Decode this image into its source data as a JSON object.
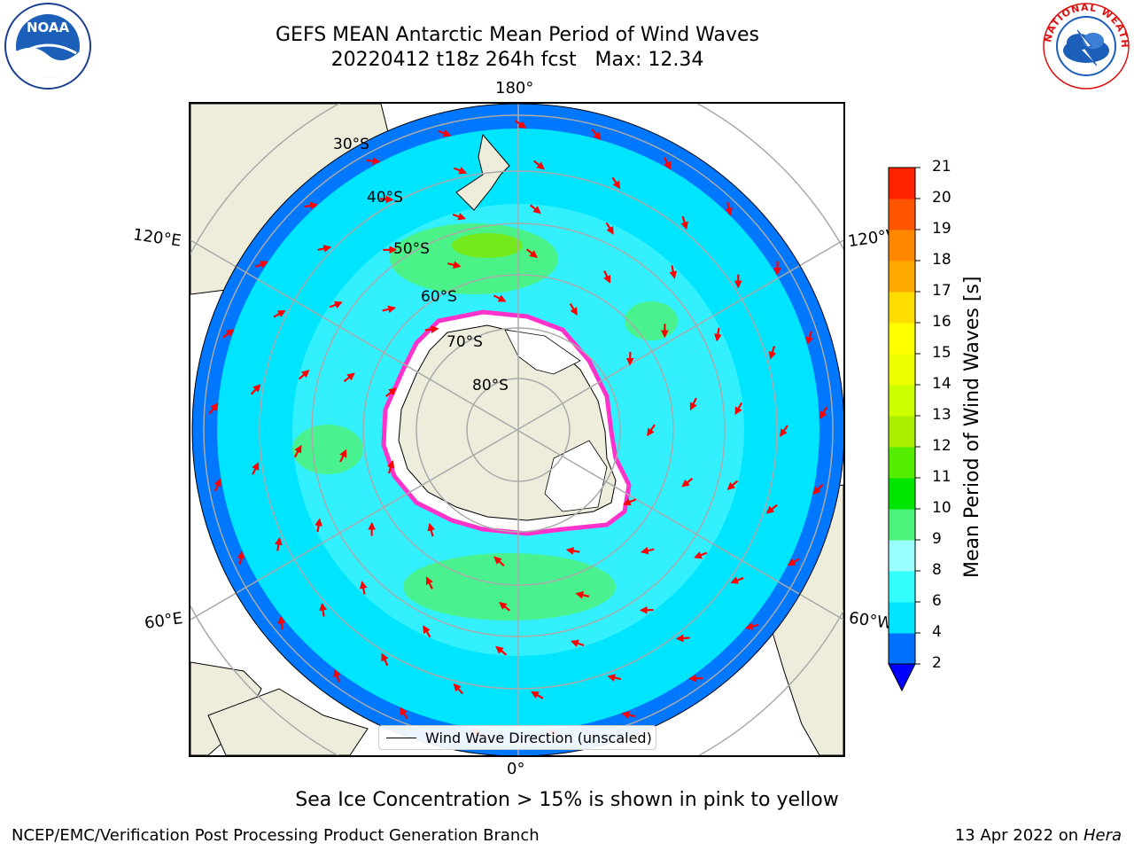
{
  "title": {
    "line1": "GEFS MEAN Antarctic Mean Period of Wind Waves",
    "line2": "20220412 t18z 264h fcst   Max: 12.34"
  },
  "logos": {
    "left": {
      "icon": "noaa-logo",
      "text": "NOAA"
    },
    "right": {
      "icon": "national-weather-service-logo",
      "text": "NATIONAL WEATHER SERVICE"
    }
  },
  "map": {
    "projection": "south-polar-stereographic",
    "meridian_labels": {
      "top": "180°",
      "bottom": "0°",
      "left_upper": "120°E",
      "left_lower": "60°E",
      "right_upper": "120°W",
      "right_lower": "60°W"
    },
    "latitude_labels": [
      "30°S",
      "40°S",
      "50°S",
      "60°S",
      "70°S",
      "80°S"
    ],
    "colors": {
      "land": "#eeecdb",
      "ice_edge": "#ff33cc",
      "arrows": "#ff0000",
      "ocean_low": "#0077ff",
      "ocean_mid": "#00e5ff",
      "ocean_high": "#33dd55"
    }
  },
  "legend": {
    "label": "Wind Wave Direction (unscaled)"
  },
  "colorbar": {
    "label": "Mean Period of Wind Waves [s]",
    "ticks": [
      "2",
      "4",
      "6",
      "8",
      "9",
      "10",
      "11",
      "12",
      "13",
      "14",
      "15",
      "16",
      "17",
      "18",
      "19",
      "20",
      "21"
    ],
    "colors": [
      "#0070ff",
      "#00e5ff",
      "#33ffff",
      "#99ffff",
      "#4df27a",
      "#00e600",
      "#55ee00",
      "#aaee00",
      "#ccff00",
      "#eeff00",
      "#ffff00",
      "#ffdd00",
      "#ffaa00",
      "#ff8800",
      "#ff5500",
      "#ff2200"
    ],
    "extend_color": "#0000ff"
  },
  "subtitle": "Sea Ice Concentration > 15% is shown in pink to yellow",
  "footer": {
    "left": "NCEP/EMC/Verification Post Processing Product Generation Branch",
    "right_prefix": "13 Apr 2022 on ",
    "right_italic": "Hera"
  }
}
